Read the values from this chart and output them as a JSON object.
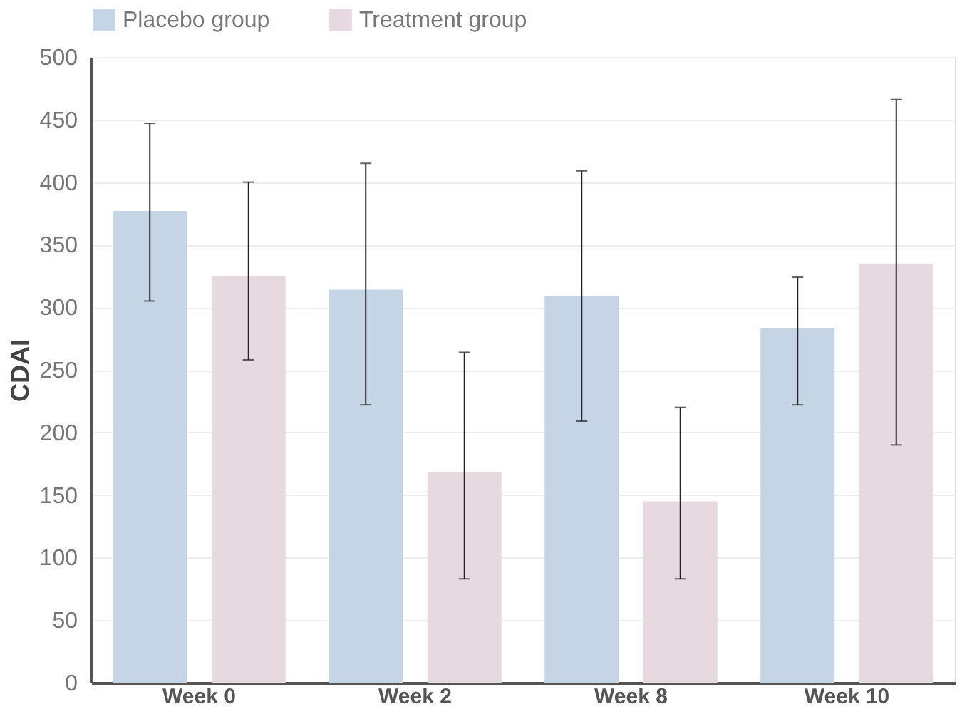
{
  "chart_data": {
    "type": "bar",
    "ylabel": "CDAI",
    "categories": [
      "Week 0",
      "Week 2",
      "Week 8",
      "Week 10"
    ],
    "series": [
      {
        "name": "Placebo group",
        "color": "#c5d5e6",
        "values": [
          377,
          314,
          309,
          283
        ],
        "errors": [
          [
            305,
            447
          ],
          [
            222,
            415
          ],
          [
            209,
            409
          ],
          [
            222,
            324
          ]
        ]
      },
      {
        "name": "Treatment group",
        "color": "#e6d9df",
        "values": [
          325,
          168,
          145,
          335
        ],
        "errors": [
          [
            258,
            400
          ],
          [
            83,
            264
          ],
          [
            83,
            220
          ],
          [
            190,
            466
          ]
        ]
      }
    ],
    "ylim": [
      0,
      500
    ],
    "yticks": [
      0,
      50,
      100,
      150,
      200,
      250,
      300,
      350,
      400,
      450,
      500
    ],
    "grid": "y",
    "legend": "top"
  }
}
